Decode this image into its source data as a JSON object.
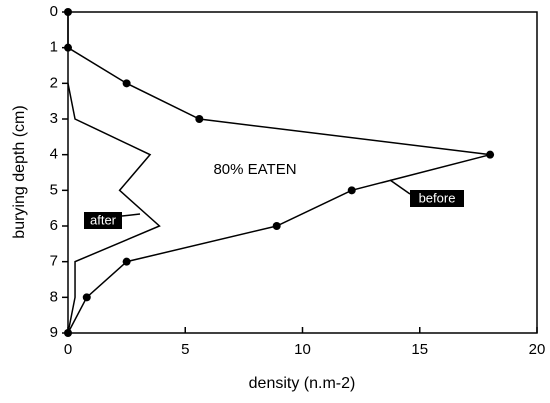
{
  "chart_data": {
    "type": "line",
    "xlabel": "density (n.m-2)",
    "ylabel": "burying depth (cm)",
    "annotation": "80% EATEN",
    "y": [
      0,
      1,
      2,
      3,
      4,
      5,
      6,
      7,
      8,
      9
    ],
    "series": [
      {
        "name": "before",
        "color": "#000000",
        "markers": true,
        "values": [
          0,
          0,
          2.5,
          5.6,
          18,
          12.1,
          8.9,
          2.5,
          0.8,
          0
        ]
      },
      {
        "name": "after",
        "color": "#000000",
        "markers": false,
        "values": [
          null,
          null,
          0,
          0.3,
          3.5,
          2.2,
          3.9,
          0.3,
          0.3,
          0
        ]
      }
    ],
    "xlim": [
      0,
      20
    ],
    "xticks": [
      0,
      5,
      10,
      15,
      20
    ],
    "ylim": [
      0,
      9
    ],
    "yticks": [
      0,
      1,
      2,
      3,
      4,
      5,
      6,
      7,
      8,
      9
    ],
    "y_inverted": true,
    "grid": false
  }
}
